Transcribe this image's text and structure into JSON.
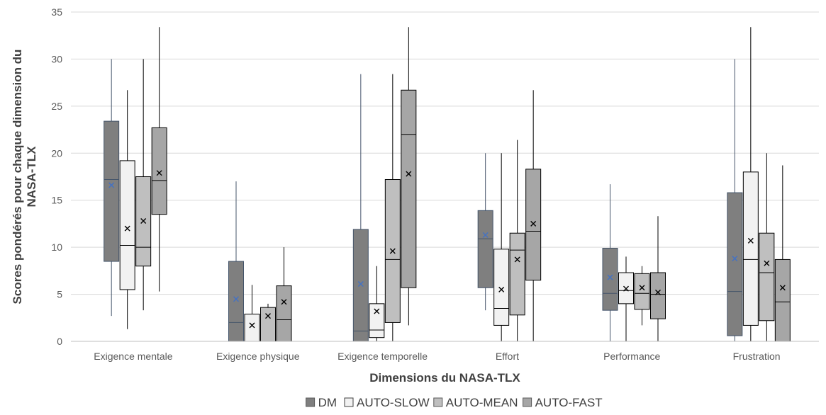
{
  "chart_data": {
    "type": "box",
    "xlabel": "Dimensions du NASA-TLX",
    "ylabel": "Scores pondérés pour chaque dimension du NASA-TLX",
    "ylim": [
      0,
      35
    ],
    "yticks": [
      0,
      5,
      10,
      15,
      20,
      25,
      30,
      35
    ],
    "grid": true,
    "legend_position": "bottom",
    "categories": [
      "Exigence mentale",
      "Exigence physique",
      "Exigence temporelle",
      "Effort",
      "Performance",
      "Frustration"
    ],
    "series": [
      {
        "name": "DM",
        "color": "#7f7f7f",
        "whisker_color": "#44546a",
        "mean_color": "#4472c4",
        "boxes": [
          {
            "min": 2.7,
            "q1": 8.5,
            "median": 17.2,
            "q3": 23.4,
            "max": 30,
            "mean": 16.6
          },
          {
            "min": 0,
            "q1": 0,
            "median": 2.0,
            "q3": 8.5,
            "max": 17,
            "mean": 4.5
          },
          {
            "min": 0,
            "q1": 0,
            "median": 1.1,
            "q3": 11.9,
            "max": 28.4,
            "mean": 6.1
          },
          {
            "min": 3.3,
            "q1": 5.7,
            "median": 10.9,
            "q3": 13.9,
            "max": 20,
            "mean": 11.3
          },
          {
            "min": 0,
            "q1": 3.3,
            "median": 5.1,
            "q3": 9.9,
            "max": 16.7,
            "mean": 6.8
          },
          {
            "min": 0,
            "q1": 0.6,
            "median": 5.3,
            "q3": 15.8,
            "max": 30,
            "mean": 8.8
          }
        ]
      },
      {
        "name": "AUTO-SLOW",
        "color": "#f2f2f2",
        "whisker_color": "#000000",
        "mean_color": "#000000",
        "boxes": [
          {
            "min": 1.3,
            "q1": 5.5,
            "median": 10.2,
            "q3": 19.2,
            "max": 26.7,
            "mean": 12.0
          },
          {
            "min": 0,
            "q1": 0,
            "median": 0,
            "q3": 2.9,
            "max": 6.0,
            "mean": 1.7
          },
          {
            "min": 0,
            "q1": 0.4,
            "median": 1.2,
            "q3": 4.0,
            "max": 8.0,
            "mean": 3.2
          },
          {
            "min": 0,
            "q1": 1.7,
            "median": 3.5,
            "q3": 9.8,
            "max": 20,
            "mean": 5.5
          },
          {
            "min": 0,
            "q1": 4.0,
            "median": 5.4,
            "q3": 7.3,
            "max": 9.0,
            "mean": 5.6
          },
          {
            "min": 0,
            "q1": 1.7,
            "median": 8.7,
            "q3": 18.0,
            "max": 33.4,
            "mean": 10.7
          }
        ]
      },
      {
        "name": "AUTO-MEAN",
        "color": "#bfbfbf",
        "whisker_color": "#000000",
        "mean_color": "#000000",
        "boxes": [
          {
            "min": 3.3,
            "q1": 8.0,
            "median": 10.0,
            "q3": 17.5,
            "max": 30,
            "mean": 12.8
          },
          {
            "min": 0,
            "q1": 0,
            "median": 0,
            "q3": 3.6,
            "max": 4.0,
            "mean": 2.7
          },
          {
            "min": 0,
            "q1": 2.0,
            "median": 8.7,
            "q3": 17.2,
            "max": 28.4,
            "mean": 9.6
          },
          {
            "min": 0,
            "q1": 2.8,
            "median": 9.7,
            "q3": 11.5,
            "max": 21.4,
            "mean": 8.7
          },
          {
            "min": 1.7,
            "q1": 3.4,
            "median": 5.1,
            "q3": 7.2,
            "max": 8.0,
            "mean": 5.7
          },
          {
            "min": 0,
            "q1": 2.2,
            "median": 7.3,
            "q3": 11.5,
            "max": 20,
            "mean": 8.3
          }
        ]
      },
      {
        "name": "AUTO-FAST",
        "color": "#a6a6a6",
        "whisker_color": "#000000",
        "mean_color": "#000000",
        "boxes": [
          {
            "min": 5.3,
            "q1": 13.5,
            "median": 17.1,
            "q3": 22.7,
            "max": 33.4,
            "mean": 17.9
          },
          {
            "min": 0,
            "q1": 0,
            "median": 2.3,
            "q3": 5.9,
            "max": 10.0,
            "mean": 4.2
          },
          {
            "min": 1.7,
            "q1": 5.7,
            "median": 22.0,
            "q3": 26.7,
            "max": 33.4,
            "mean": 17.8
          },
          {
            "min": 0,
            "q1": 6.5,
            "median": 11.7,
            "q3": 18.3,
            "max": 26.7,
            "mean": 12.5
          },
          {
            "min": 0,
            "q1": 2.4,
            "median": 5.0,
            "q3": 7.3,
            "max": 13.3,
            "mean": 5.2
          },
          {
            "min": 0,
            "q1": 0,
            "median": 4.2,
            "q3": 8.7,
            "max": 18.7,
            "mean": 5.7
          }
        ]
      }
    ]
  }
}
